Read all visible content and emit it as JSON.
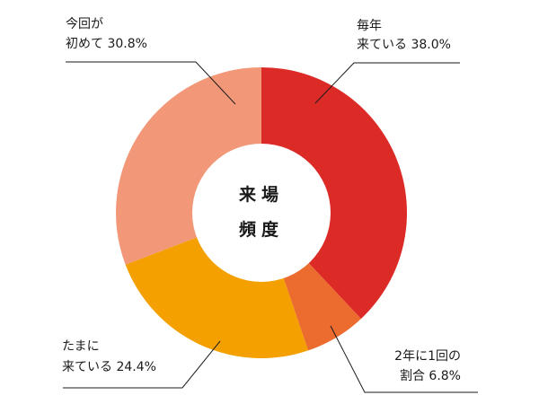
{
  "chart_data": {
    "type": "pie",
    "style": "donut",
    "center_label": [
      "来場",
      "頻度"
    ],
    "slices": [
      {
        "line1": "毎年",
        "line2": "来ている 38.0%",
        "value": 38.0,
        "color": "#dc2a27"
      },
      {
        "line1": "2年に1回の",
        "line2": "割合 6.8%",
        "value": 6.8,
        "color": "#ec6b2e"
      },
      {
        "line1": "たまに",
        "line2": "来ている 24.4%",
        "value": 24.4,
        "color": "#f3a000"
      },
      {
        "line1": "今回が",
        "line2": "初めて 30.8%",
        "value": 30.8,
        "color": "#f29879"
      }
    ]
  }
}
